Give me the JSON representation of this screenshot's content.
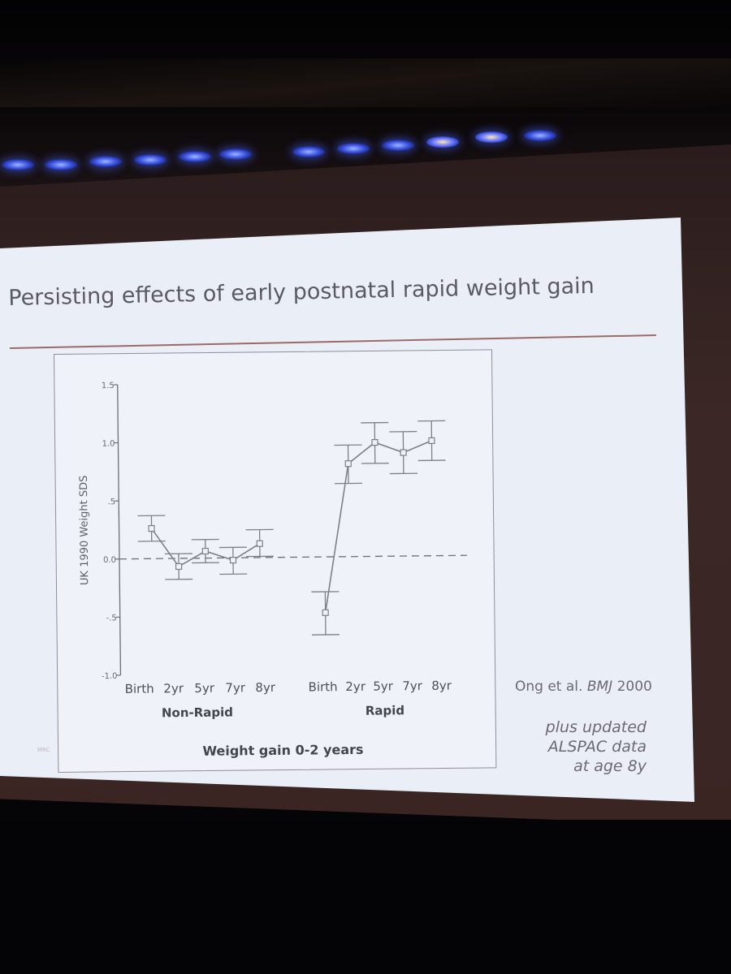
{
  "slide": {
    "title": "Persisting effects of early postnatal rapid weight gain",
    "citation_authors": "Ong et al.",
    "citation_journal": "BMJ",
    "citation_year": "2000",
    "note_lines": [
      "plus updated",
      "ALSPAC data",
      "at age 8y"
    ],
    "logo_text": "MRC"
  },
  "colors": {
    "slide_background": "#eaeef6",
    "title_text": "#5a5a66",
    "title_rule": "#9a6a66",
    "series_line": "#7e8088",
    "room": "#050407",
    "stage_light": "#3b55e0"
  },
  "chart_data": {
    "type": "line",
    "title": "",
    "ylabel": "UK 1990 Weight SDS",
    "xlabel": "Weight gain 0-2 years",
    "ylim": [
      -1.0,
      1.5
    ],
    "yticks": [
      "1.5",
      "1.0",
      ".5",
      "0.0",
      "-.5",
      "-1.0"
    ],
    "ytick_values": [
      1.5,
      1.0,
      0.5,
      0.0,
      -0.5,
      -1.0
    ],
    "reference_line": 0.0,
    "grid": false,
    "groups": [
      {
        "name": "Non-Rapid",
        "categories": [
          "Birth",
          "2yr",
          "5yr",
          "7yr",
          "8yr"
        ],
        "values": [
          0.26,
          -0.07,
          0.06,
          -0.02,
          0.12
        ],
        "lower": [
          0.15,
          -0.18,
          -0.04,
          -0.14,
          0.01
        ],
        "upper": [
          0.37,
          0.04,
          0.16,
          0.09,
          0.24
        ]
      },
      {
        "name": "Rapid",
        "categories": [
          "Birth",
          "2yr",
          "5yr",
          "7yr",
          "8yr"
        ],
        "values": [
          -0.48,
          0.8,
          0.98,
          0.89,
          0.99
        ],
        "lower": [
          -0.67,
          0.63,
          0.8,
          0.71,
          0.82
        ],
        "upper": [
          -0.3,
          0.96,
          1.15,
          1.07,
          1.16
        ]
      }
    ]
  }
}
